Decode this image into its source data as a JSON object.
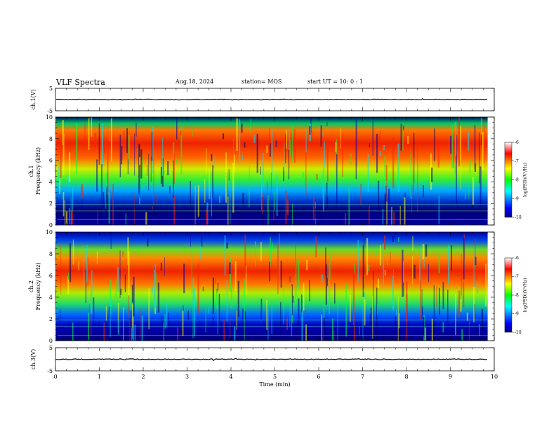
{
  "header": {
    "title": "VLF Spectra",
    "date": "Aug.18, 2024",
    "station": "station= MOS",
    "start": "start  UT =   10: 0  : 1"
  },
  "chart_data": [
    {
      "type": "line",
      "panel": "ch1-waveform",
      "ylabel": "ch.1(V)",
      "ylim": [
        -5,
        5
      ],
      "yticks": [
        "5",
        "-5"
      ],
      "baseline": 0
    },
    {
      "type": "heatmap",
      "panel": "ch1-spectrogram",
      "ylabel_line1": "ch.1",
      "ylabel_line2": "Frequency (kHz)",
      "ylim": [
        0,
        10
      ],
      "yticks": [
        "0",
        "2",
        "4",
        "6",
        "8",
        "10"
      ],
      "intensity_band_khz": [
        4,
        9.5
      ],
      "colorbar": {
        "label": "log(PSD)(V²/Hz)",
        "range": [
          -10,
          -6
        ],
        "ticks": [
          "-6",
          "-7",
          "-8",
          "-9",
          "-10"
        ]
      }
    },
    {
      "type": "heatmap",
      "panel": "ch2-spectrogram",
      "ylabel_line1": "ch.2",
      "ylabel_line2": "Frequency (kHz)",
      "ylim": [
        0,
        10
      ],
      "yticks": [
        "0",
        "2",
        "4",
        "6",
        "8",
        "10"
      ],
      "intensity_band_khz": [
        4.5,
        8
      ],
      "colorbar": {
        "label": "log(PSD)(V²/Hz)",
        "range": [
          -10,
          -6
        ],
        "ticks": [
          "-6",
          "-7",
          "-8",
          "-9",
          "-10"
        ]
      }
    },
    {
      "type": "line",
      "panel": "ch3-waveform",
      "ylabel": "ch.3(V)",
      "ylim": [
        -5,
        5
      ],
      "yticks": [
        "5",
        "-5"
      ],
      "baseline": 0
    }
  ],
  "xaxis": {
    "xlabel": "Time  (min)",
    "xlim": [
      0,
      10
    ],
    "data_end_min": 9.85,
    "ticks": [
      "0",
      "1",
      "2",
      "3",
      "4",
      "5",
      "6",
      "7",
      "8",
      "9",
      "10"
    ]
  },
  "colors": {
    "low": "#000080",
    "mid": "#00ff00",
    "high": "#ff0000",
    "axis": "#000000"
  }
}
